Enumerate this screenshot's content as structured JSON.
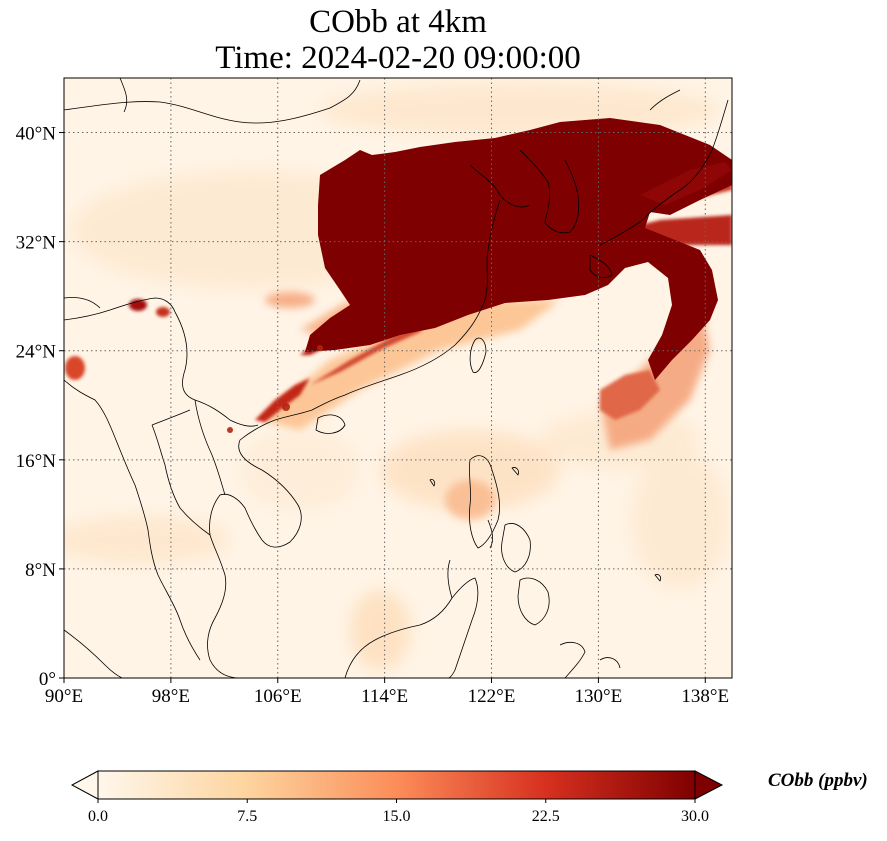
{
  "title": {
    "line1": "CObb at 4km",
    "line2": "Time: 2024-02-20 09:00:00"
  },
  "map": {
    "projection": "plate-carree",
    "lon_range": [
      90,
      140
    ],
    "lat_range": [
      0,
      44
    ],
    "gridlines": "dotted",
    "lon_ticks": [
      {
        "value": 90,
        "label": "90°E"
      },
      {
        "value": 98,
        "label": "98°E"
      },
      {
        "value": 106,
        "label": "106°E"
      },
      {
        "value": 114,
        "label": "114°E"
      },
      {
        "value": 122,
        "label": "122°E"
      },
      {
        "value": 130,
        "label": "130°E"
      },
      {
        "value": 138,
        "label": "138°E"
      }
    ],
    "lat_ticks": [
      {
        "value": 0,
        "label": "0°"
      },
      {
        "value": 8,
        "label": "8°N"
      },
      {
        "value": 16,
        "label": "16°N"
      },
      {
        "value": 24,
        "label": "24°N"
      },
      {
        "value": 32,
        "label": "32°N"
      },
      {
        "value": 40,
        "label": "40°N"
      }
    ],
    "colormap": "OrRd",
    "background_color": "#fff4e6",
    "coast_color": "#000000"
  },
  "colorbar": {
    "label": "CObb (ppbv)",
    "min": 0,
    "max": 30,
    "extend": "both",
    "ticks": [
      "0.0",
      "7.5",
      "15.0",
      "22.5",
      "30.0"
    ],
    "stops": [
      "#fff7ec",
      "#fdd49e",
      "#fc8d59",
      "#d7301f",
      "#7f0000"
    ]
  }
}
